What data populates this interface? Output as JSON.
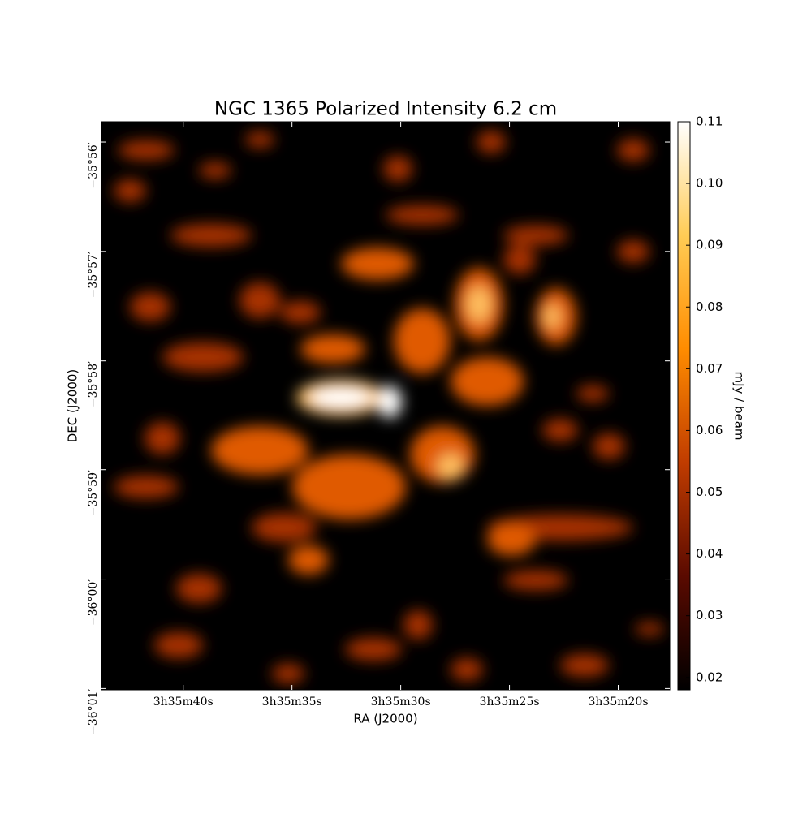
{
  "chart_data": {
    "type": "image",
    "title": "NGC 1365 Polarized Intensity 6.2 cm",
    "xlabel": "RA (J2000)",
    "ylabel": "DEC (J2000)",
    "colorbar_label": "mJy / beam",
    "xlim": [
      43.76,
      17.63
    ],
    "xticks": [
      {
        "value": 40,
        "label": "3h35m40s"
      },
      {
        "value": 35,
        "label": "3h35m35s"
      },
      {
        "value": 30,
        "label": "3h35m30s"
      },
      {
        "value": 25,
        "label": "3h35m25s"
      },
      {
        "value": 20,
        "label": "3h35m20s"
      }
    ],
    "ylim": [
      -36.0169,
      -35.9302
    ],
    "yticks": [
      {
        "value": -35.9333,
        "label": "−35°56′"
      },
      {
        "value": -35.95,
        "label": "−35°57′"
      },
      {
        "value": -35.9667,
        "label": "−35°58′"
      },
      {
        "value": -35.9833,
        "label": "−35°59′"
      },
      {
        "value": -36.0,
        "label": "−36°00′"
      },
      {
        "value": -36.0167,
        "label": "−36°01′"
      }
    ],
    "clim": [
      0.018,
      0.11
    ],
    "cticks": [
      0.02,
      0.03,
      0.04,
      0.05,
      0.06,
      0.07,
      0.08,
      0.09,
      {
        "value": 0.1,
        "label": "0.10"
      },
      0.11
    ],
    "colormap": [
      "#000000",
      "#5a0a00",
      "#c03c00",
      "#ff8c00",
      "#ffcc55",
      "#ffffff"
    ]
  }
}
